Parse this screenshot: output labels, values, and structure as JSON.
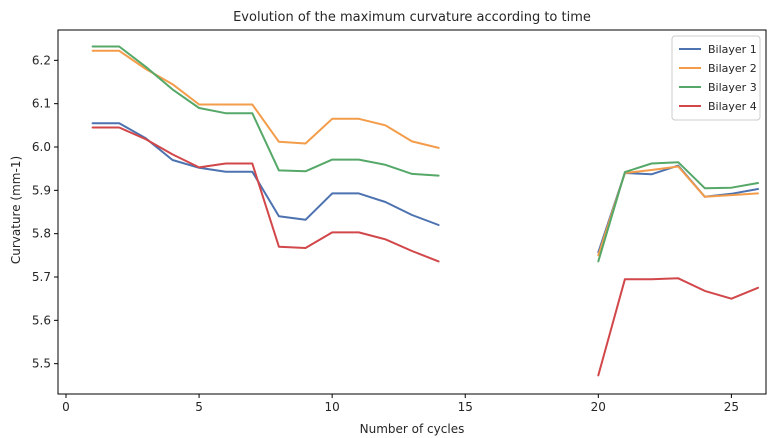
{
  "chart_data": {
    "type": "line",
    "title": "Evolution of the maximum curvature according to time",
    "xlabel": "Number of cycles",
    "ylabel": "Curvature (mm-1)",
    "xlim": [
      -0.3,
      26.3
    ],
    "ylim": [
      5.43,
      6.27
    ],
    "xticks": [
      0,
      5,
      10,
      15,
      20,
      25
    ],
    "yticks": [
      5.5,
      5.6,
      5.7,
      5.8,
      5.9,
      6.0,
      6.1,
      6.2
    ],
    "grid": false,
    "legend_position": "top-right",
    "series": [
      {
        "name": "Bilayer 1",
        "color": "#4c72b0",
        "segments": [
          {
            "x": [
              1,
              2,
              3,
              4,
              5,
              6,
              7,
              8,
              9,
              10,
              11,
              12,
              13,
              14
            ],
            "y": [
              6.055,
              6.055,
              6.02,
              5.97,
              5.952,
              5.943,
              5.943,
              5.84,
              5.832,
              5.893,
              5.893,
              5.873,
              5.843,
              5.82
            ]
          },
          {
            "x": [
              20,
              21,
              22,
              23,
              24,
              25,
              26
            ],
            "y": [
              5.757,
              5.94,
              5.937,
              5.957,
              5.885,
              5.892,
              5.903
            ]
          }
        ]
      },
      {
        "name": "Bilayer 2",
        "color": "#f39c4a",
        "segments": [
          {
            "x": [
              1,
              2,
              3,
              4,
              5,
              6,
              7,
              8,
              9,
              10,
              11,
              12,
              13,
              14
            ],
            "y": [
              6.222,
              6.222,
              6.18,
              6.145,
              6.098,
              6.098,
              6.098,
              6.012,
              6.008,
              6.065,
              6.065,
              6.05,
              6.013,
              5.998
            ]
          },
          {
            "x": [
              20,
              21,
              22,
              23,
              24,
              25,
              26
            ],
            "y": [
              5.75,
              5.94,
              5.947,
              5.955,
              5.885,
              5.889,
              5.893
            ]
          }
        ]
      },
      {
        "name": "Bilayer 3",
        "color": "#55a868",
        "segments": [
          {
            "x": [
              1,
              2,
              3,
              4,
              5,
              6,
              7,
              8,
              9,
              10,
              11,
              12,
              13,
              14
            ],
            "y": [
              6.232,
              6.232,
              6.185,
              6.133,
              6.09,
              6.078,
              6.078,
              5.946,
              5.944,
              5.971,
              5.971,
              5.959,
              5.938,
              5.934
            ]
          },
          {
            "x": [
              20,
              21,
              22,
              23,
              24,
              25,
              26
            ],
            "y": [
              5.736,
              5.942,
              5.962,
              5.965,
              5.905,
              5.906,
              5.917
            ]
          }
        ]
      },
      {
        "name": "Bilayer 4",
        "color": "#d1474a",
        "segments": [
          {
            "x": [
              1,
              2,
              3,
              4,
              5,
              6,
              7,
              8,
              9,
              10,
              11,
              12,
              13,
              14
            ],
            "y": [
              6.045,
              6.045,
              6.018,
              5.983,
              5.953,
              5.962,
              5.962,
              5.77,
              5.767,
              5.803,
              5.803,
              5.787,
              5.76,
              5.736
            ]
          },
          {
            "x": [
              20,
              21,
              22,
              23,
              24,
              25,
              26
            ],
            "y": [
              5.473,
              5.695,
              5.695,
              5.697,
              5.668,
              5.65,
              5.675
            ]
          }
        ]
      }
    ]
  }
}
